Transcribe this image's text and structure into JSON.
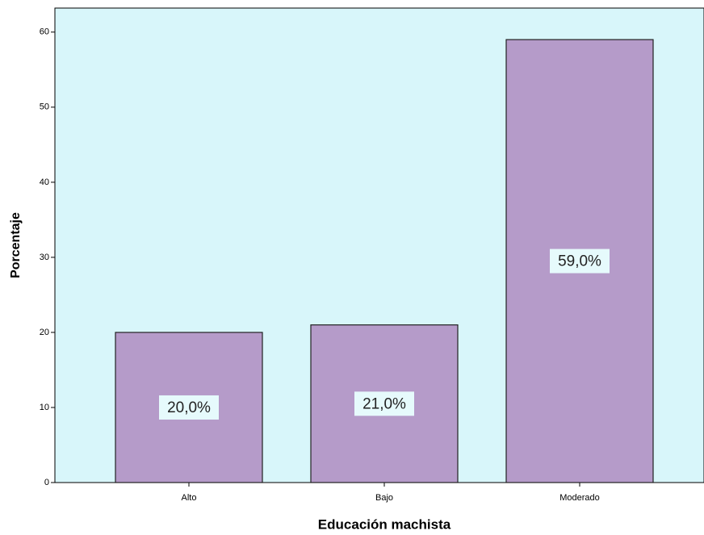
{
  "chart_data": {
    "type": "bar",
    "x_label": "Educación machista",
    "y_label": "Porcentaje",
    "categories": [
      "Alto",
      "Bajo",
      "Moderado"
    ],
    "values": [
      20,
      21,
      59
    ],
    "value_labels": [
      "20,0%",
      "21,0%",
      "59,0%"
    ],
    "color": "#b59bc9",
    "ylim": [
      0,
      63.2
    ],
    "yticks": [
      0,
      10,
      20,
      30,
      40,
      50,
      60
    ]
  }
}
